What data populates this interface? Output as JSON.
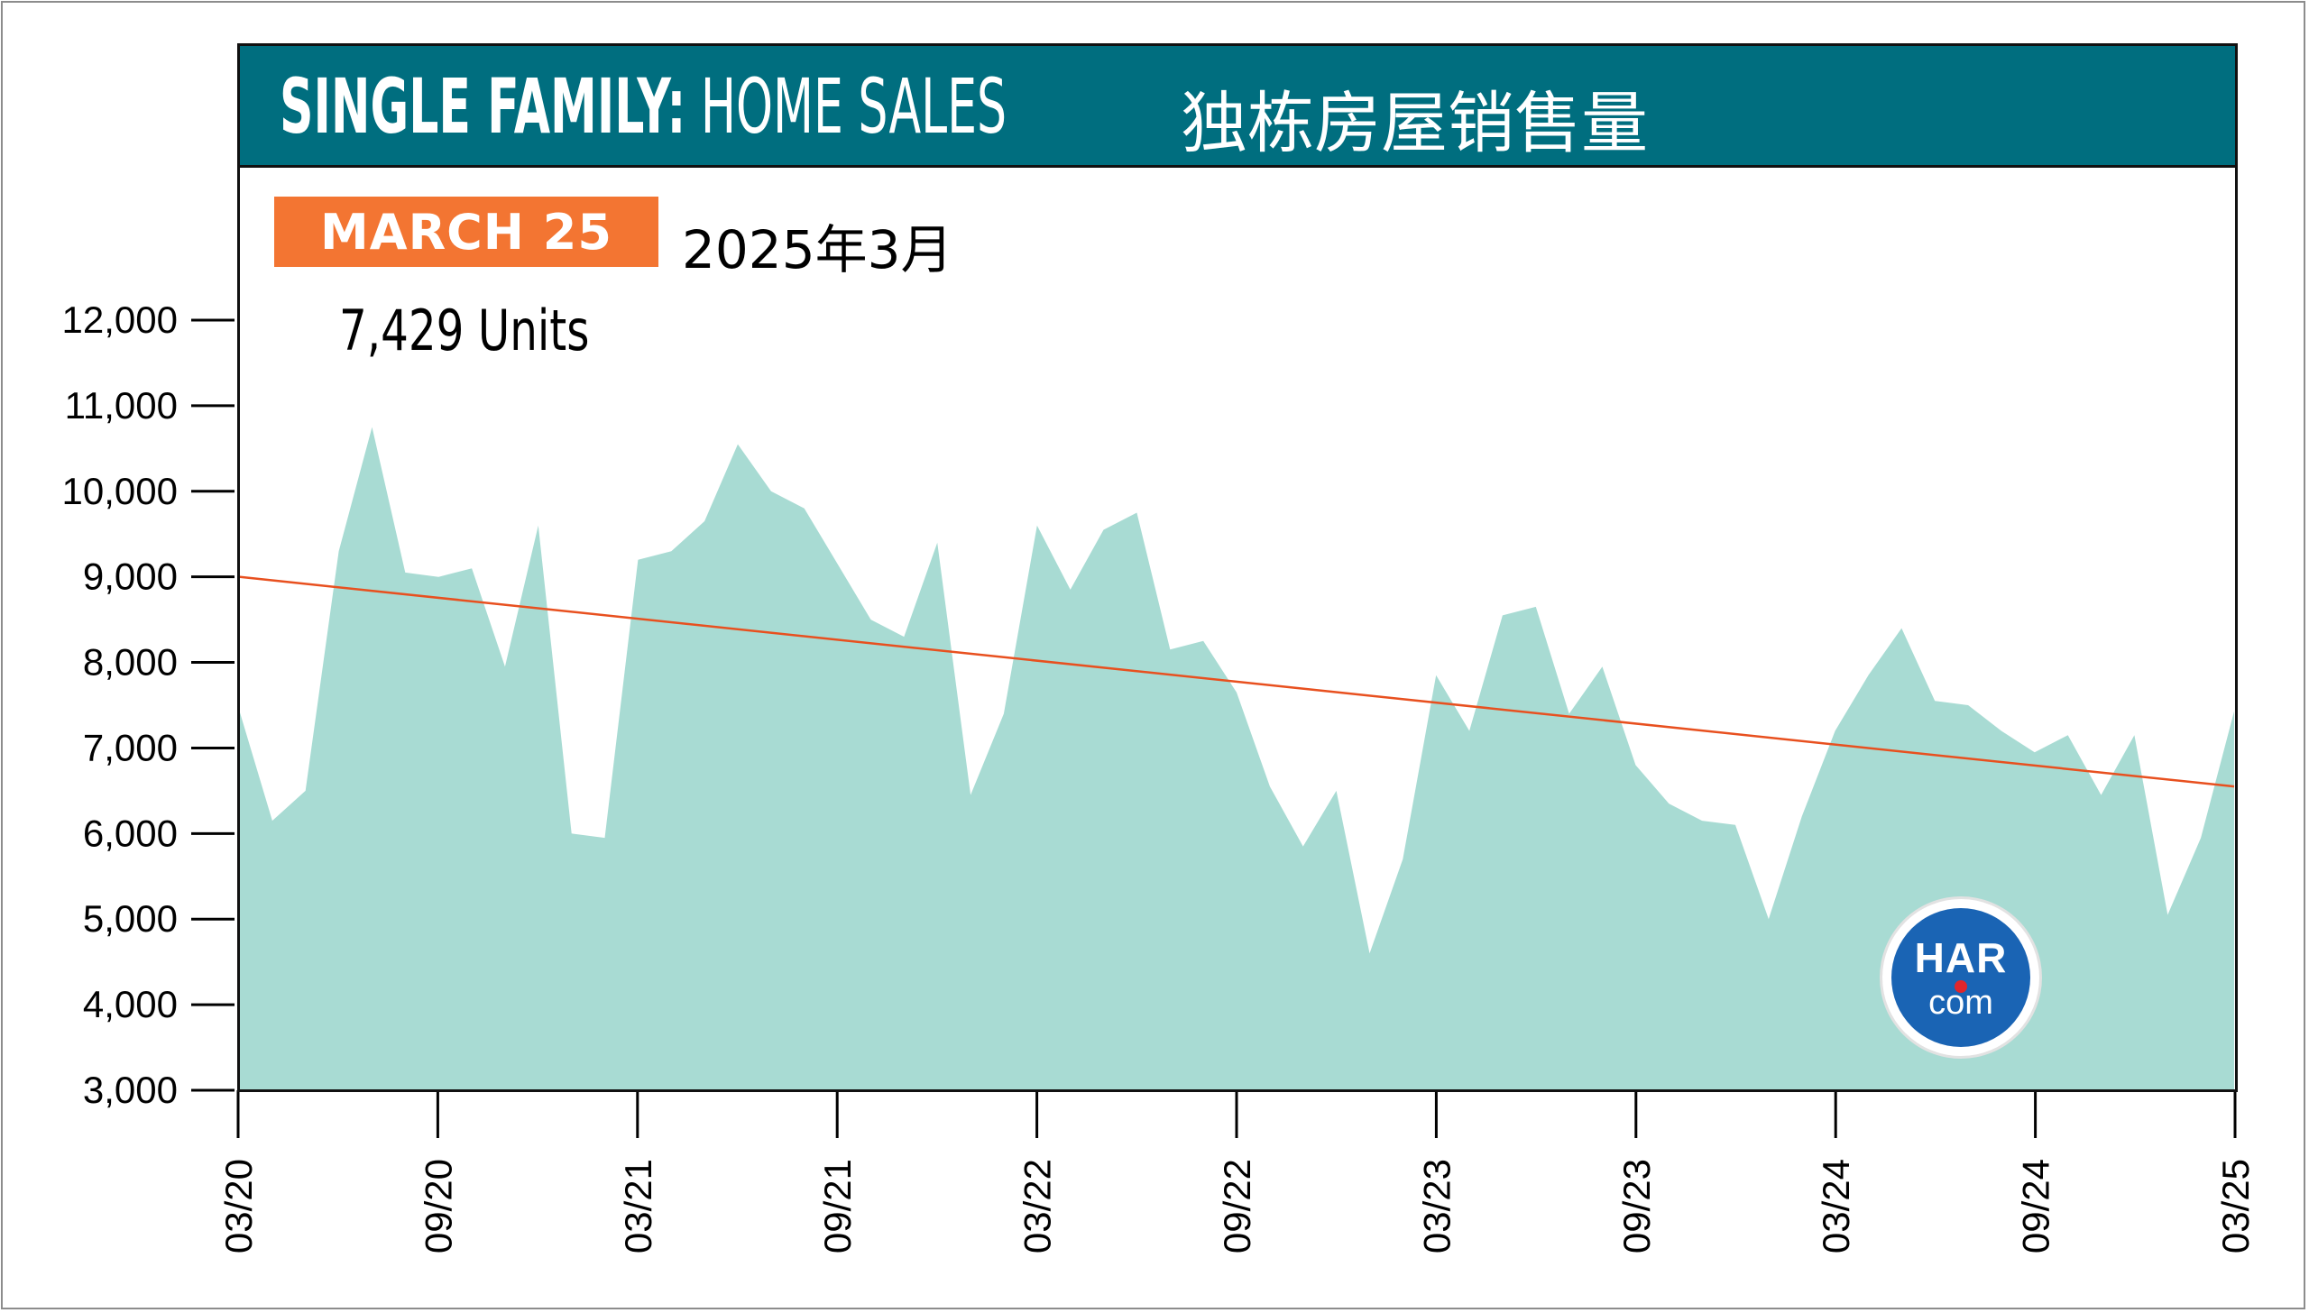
{
  "header": {
    "title_bold": "SINGLE FAMILY:",
    "title_light": " HOME SALES",
    "title_cn": "独栋房屋销售量",
    "bg_color": "#006e7f"
  },
  "badge": {
    "label": "MARCH 25",
    "label_cn": "2025年3月",
    "color": "#f37532"
  },
  "current_value_label": "7,429 Units",
  "logo": {
    "har": "HAR",
    "com": "com",
    "color": "#1a64b4"
  },
  "chart_data": {
    "type": "area",
    "title": "SINGLE FAMILY: HOME SALES",
    "xlabel": "",
    "ylabel": "",
    "ylim": [
      3000,
      12000
    ],
    "yticks": [
      3000,
      4000,
      5000,
      6000,
      7000,
      8000,
      9000,
      10000,
      11000,
      12000
    ],
    "ytick_labels": [
      "3,000",
      "4,000",
      "5,000",
      "6,000",
      "7,000",
      "8,000",
      "9,000",
      "10,000",
      "11,000",
      "12,000"
    ],
    "xtick_labels": [
      "03/20",
      "09/20",
      "03/21",
      "09/21",
      "03/22",
      "09/22",
      "03/23",
      "09/23",
      "03/24",
      "09/24",
      "03/25"
    ],
    "fill_color": "#a8dbd3",
    "trend_color": "#e8501f",
    "series": [
      {
        "values": [
          7450,
          6150,
          6500,
          9300,
          10750,
          9050,
          9000,
          9100,
          7950,
          9600,
          6000,
          5950,
          9200,
          9300,
          9650,
          10550,
          10000,
          9800,
          9150,
          8500,
          8300,
          9400,
          6450,
          7400,
          9600,
          8850,
          9550,
          9750,
          8150,
          8250,
          7650,
          6550,
          5850,
          6500,
          4600,
          5700,
          7850,
          7200,
          8550,
          8650,
          7400,
          7950,
          6800,
          6350,
          6150,
          6100,
          5000,
          6200,
          7200,
          7850,
          8400,
          7550,
          7500,
          7200,
          6950,
          7150,
          6450,
          7150,
          5050,
          5950,
          7429
        ]
      }
    ],
    "trend": [
      9000,
      6550
    ]
  }
}
